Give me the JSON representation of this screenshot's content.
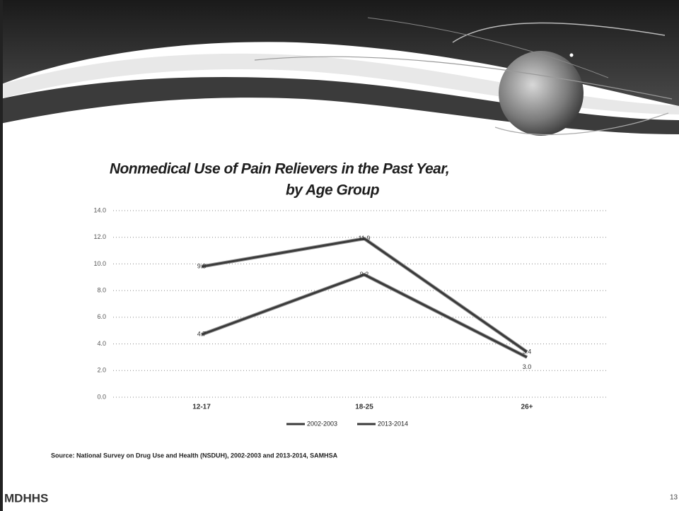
{
  "chart_data": {
    "type": "line",
    "title": [
      "Nonmedical Use of Pain Relievers in the Past Year,",
      "by Age Group"
    ],
    "categories": [
      "12-17",
      "18-25",
      "26+"
    ],
    "series": [
      {
        "name": "2002-2003",
        "color": "#3a3a3a",
        "values": [
          9.8,
          11.9,
          3.4
        ],
        "value_labels": [
          "9.8",
          "11.9",
          "3.4"
        ]
      },
      {
        "name": "2013-2014",
        "color": "#3a3a3a",
        "values": [
          4.7,
          9.2,
          3.0
        ],
        "value_labels": [
          "4.7",
          "9.2",
          "3.0"
        ]
      }
    ],
    "ylim": [
      0,
      14
    ],
    "yticks": [
      {
        "value": 0,
        "label": "0.0"
      },
      {
        "value": 2,
        "label": "2.0"
      },
      {
        "value": 4,
        "label": "4.0"
      },
      {
        "value": 6,
        "label": "6.0"
      },
      {
        "value": 8,
        "label": "8.0"
      },
      {
        "value": 10,
        "label": "10.0"
      },
      {
        "value": 12,
        "label": "12.0"
      },
      {
        "value": 14,
        "label": "14.0"
      }
    ],
    "grid": true,
    "legend": "bottom"
  },
  "source": "Source: National Survey on Drug Use and Health (NSDUH), 2002-2003 and 2013-2014, SAMHSA",
  "footer": {
    "logo": "MDHHS",
    "page_number": "13"
  }
}
